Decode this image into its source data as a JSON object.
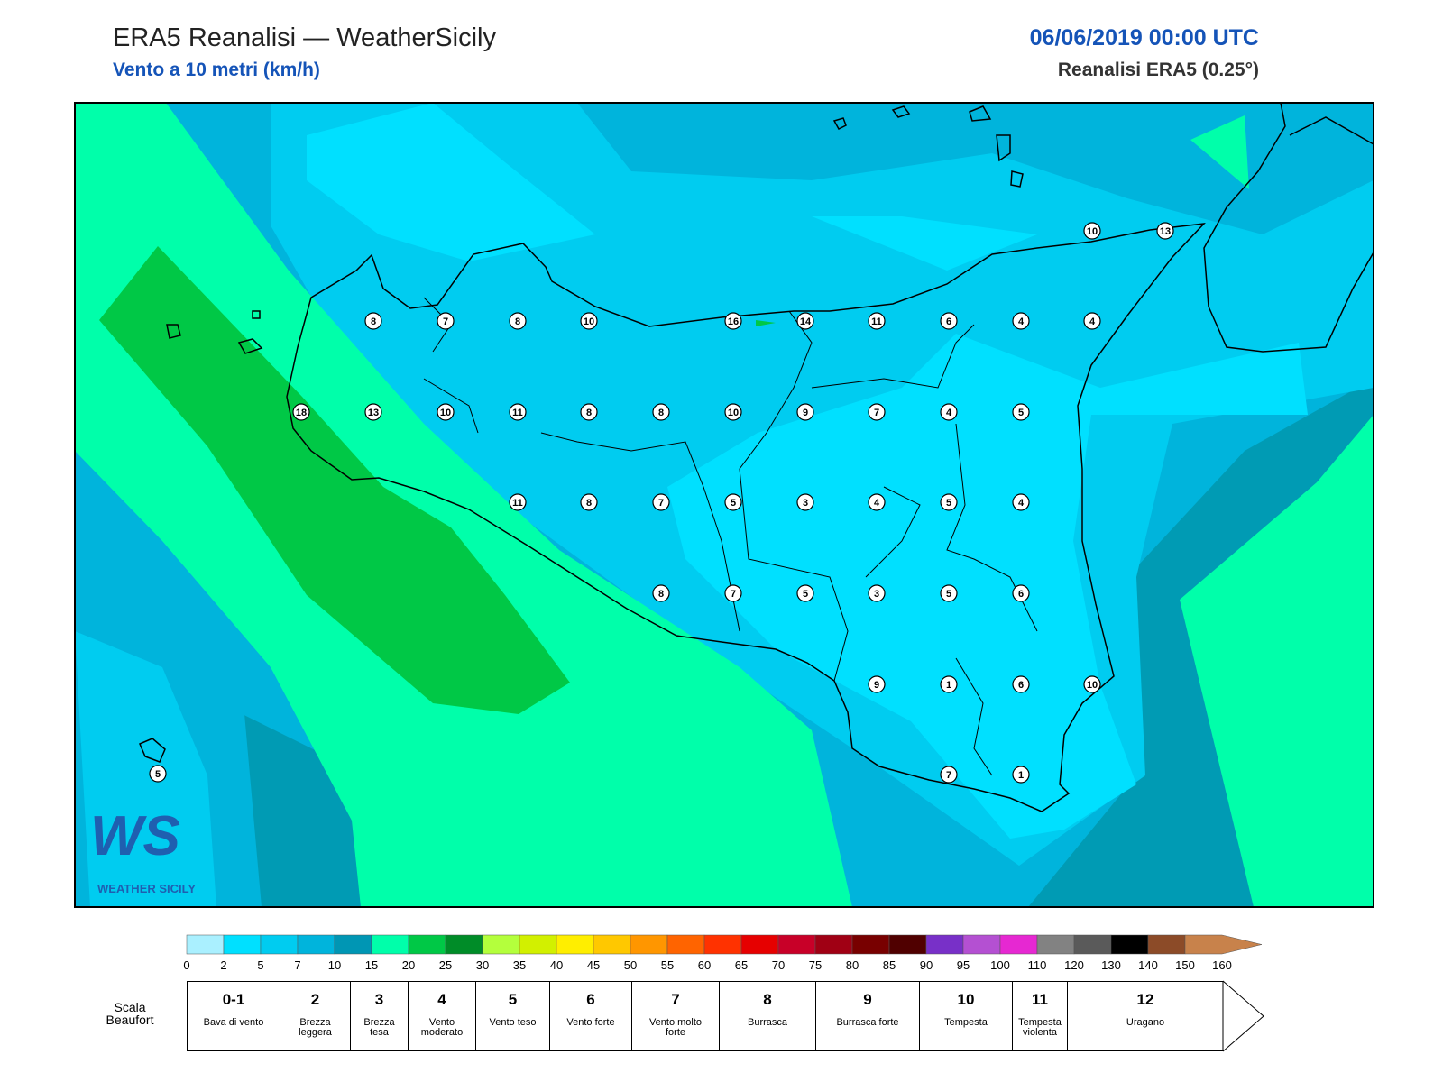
{
  "header": {
    "title": "ERA5 Reanalisi — WeatherSicily",
    "subtitle": "Vento a 10 metri (km/h)",
    "date": "06/06/2019 00:00 UTC",
    "source": "Reanalisi ERA5 (0.25°)"
  },
  "map": {
    "stations": [
      8,
      7,
      8,
      10,
      16,
      14,
      11,
      6,
      4,
      4,
      18,
      13,
      10,
      11,
      8,
      8,
      10,
      9,
      7,
      4,
      5,
      11,
      8,
      7,
      5,
      3,
      4,
      5,
      4,
      8,
      7,
      5,
      3,
      5,
      6,
      9,
      1,
      6,
      10,
      7,
      1,
      10,
      13,
      5
    ],
    "logo": {
      "mark": "WS",
      "name": "WEATHER SICILY"
    }
  },
  "colorbar": {
    "ticks": [
      0,
      2,
      5,
      7,
      10,
      15,
      20,
      25,
      30,
      35,
      40,
      45,
      50,
      55,
      60,
      65,
      70,
      75,
      80,
      85,
      90,
      95,
      100,
      110,
      120,
      130,
      140,
      150,
      160
    ],
    "colors": [
      "#aaf0ff",
      "#00e0ff",
      "#00ccf0",
      "#00b4dc",
      "#0096b4",
      "#00ffaa",
      "#00c846",
      "#008c28",
      "#b4ff3c",
      "#d2f000",
      "#ffee00",
      "#ffc800",
      "#ff9600",
      "#ff6400",
      "#ff3200",
      "#e60000",
      "#c80028",
      "#a00014",
      "#780000",
      "#500000",
      "#7830c8",
      "#b450d2",
      "#e628d2",
      "#828282",
      "#5a5a5a",
      "#000000",
      "#8c4b28",
      "#c8824b"
    ]
  },
  "beaufort": {
    "label": "Scala Beaufort",
    "levels": [
      {
        "force": "0-1",
        "name": "Bava di vento"
      },
      {
        "force": "2",
        "name": "Brezza leggera"
      },
      {
        "force": "3",
        "name": "Brezza tesa"
      },
      {
        "force": "4",
        "name": "Vento moderato"
      },
      {
        "force": "5",
        "name": "Vento teso"
      },
      {
        "force": "6",
        "name": "Vento forte"
      },
      {
        "force": "7",
        "name": "Vento molto forte"
      },
      {
        "force": "8",
        "name": "Burrasca"
      },
      {
        "force": "9",
        "name": "Burrasca forte"
      },
      {
        "force": "10",
        "name": "Tempesta"
      },
      {
        "force": "11",
        "name": "Tempesta violenta"
      },
      {
        "force": "12",
        "name": "Uragano"
      }
    ]
  }
}
